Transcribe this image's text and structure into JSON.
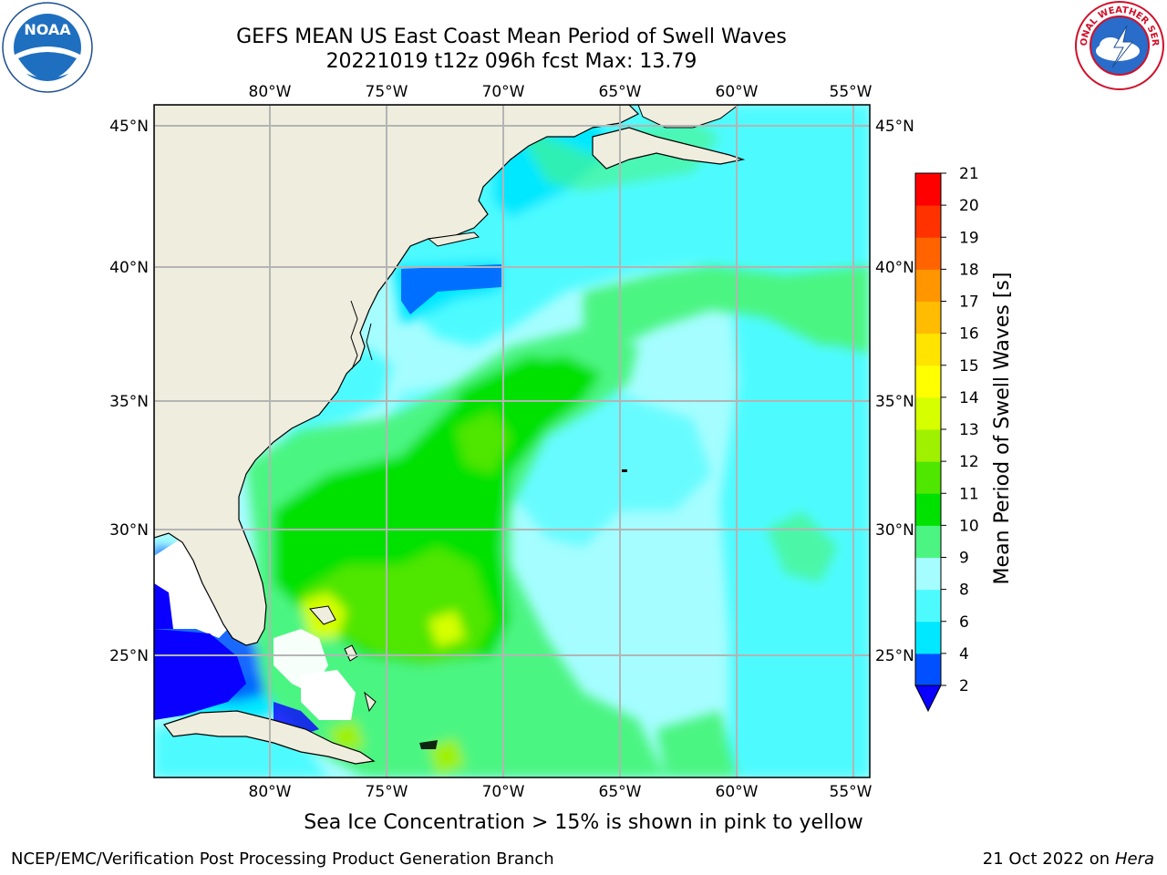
{
  "header": {
    "title_line1": "GEFS MEAN US East Coast Mean Period of Swell Waves",
    "title_line2": "20221019 t12z 096h fcst   Max: 13.79"
  },
  "logos": {
    "left": {
      "name": "noaa-logo",
      "text": "NOAA"
    },
    "right": {
      "name": "nws-logo",
      "text": "NATIONAL WEATHER SERVICE"
    }
  },
  "map": {
    "lon_labels": [
      "80°W",
      "75°W",
      "70°W",
      "65°W",
      "60°W",
      "55°W"
    ],
    "lat_labels": [
      "45°N",
      "40°N",
      "35°N",
      "30°N",
      "25°N"
    ],
    "colors": {
      "land": "#efedde",
      "grid": "#b4b4b4",
      "coast": "#000000"
    }
  },
  "colorbar": {
    "label": "Mean Period of Swell Waves [s]",
    "ticks": [
      "2",
      "4",
      "6",
      "8",
      "9",
      "10",
      "11",
      "12",
      "13",
      "14",
      "15",
      "16",
      "17",
      "18",
      "19",
      "20",
      "21"
    ],
    "colors": [
      "#0050ff",
      "#00e8ff",
      "#4dfbff",
      "#a5fdff",
      "#4cf582",
      "#00e100",
      "#4fe600",
      "#9ff100",
      "#d6ff00",
      "#ffff00",
      "#ffe400",
      "#ffbc00",
      "#ff9600",
      "#ff6400",
      "#ff3200",
      "#ff0000"
    ],
    "under_color": "#0a00ff"
  },
  "footer": {
    "sea_ice_note": "Sea Ice Concentration > 15% is shown in pink to yellow",
    "credit": "NCEP/EMC/Verification Post Processing Product Generation Branch",
    "date": "21 Oct 2022 on",
    "machine": "Hera"
  }
}
